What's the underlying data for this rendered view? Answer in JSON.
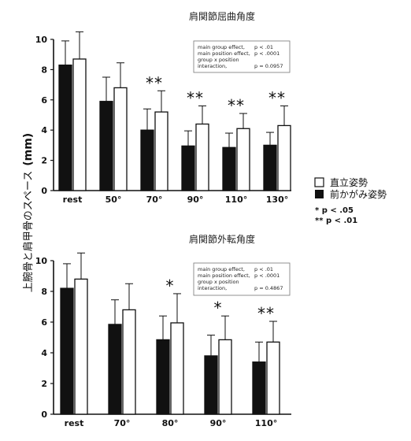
{
  "y_axis_label": "上腕骨と肩甲骨のスペース",
  "y_axis_unit": "(mm)",
  "legend": {
    "upright": "直立姿勢",
    "slouched": "前かがみ姿勢",
    "colors": {
      "upright": "#ffffff",
      "slouched": "#111111"
    }
  },
  "significance_legend": [
    "* p < .05",
    "** p < .01"
  ],
  "chart_data": [
    {
      "type": "bar",
      "title": "肩関節屈曲角度",
      "categories": [
        "rest",
        "50°",
        "70°",
        "90°",
        "110°",
        "130°"
      ],
      "ylim": [
        0,
        10
      ],
      "yticks": [
        "0",
        "2",
        "4",
        "6",
        "8",
        "10"
      ],
      "series": [
        {
          "name": "前かがみ姿勢",
          "values": [
            8.3,
            5.9,
            4.0,
            2.95,
            2.85,
            3.0
          ],
          "errors": [
            1.6,
            1.6,
            1.4,
            1.0,
            0.95,
            0.85
          ]
        },
        {
          "name": "直立姿勢",
          "values": [
            8.7,
            6.8,
            5.2,
            4.4,
            4.1,
            4.3
          ],
          "errors": [
            1.8,
            1.65,
            1.4,
            1.2,
            1.0,
            1.3
          ]
        }
      ],
      "significance": [
        "",
        "",
        "**",
        "**",
        "**",
        "**"
      ],
      "stats": [
        {
          "label": "main group effect,",
          "value": "p < .01"
        },
        {
          "label": "main position effect,",
          "value": "p < .0001"
        },
        {
          "label": "group x position",
          "value": ""
        },
        {
          "label": "interaction,",
          "value": "p = 0.0957"
        }
      ]
    },
    {
      "type": "bar",
      "title": "肩関節外転角度",
      "categories": [
        "rest",
        "70°",
        "80°",
        "90°",
        "110°"
      ],
      "ylim": [
        0,
        10
      ],
      "yticks": [
        "0",
        "2",
        "4",
        "6",
        "8",
        "10"
      ],
      "series": [
        {
          "name": "前かがみ姿勢",
          "values": [
            8.2,
            5.85,
            4.85,
            3.8,
            3.4
          ],
          "errors": [
            1.6,
            1.6,
            1.55,
            1.35,
            1.3
          ]
        },
        {
          "name": "直立姿勢",
          "values": [
            8.8,
            6.8,
            5.95,
            4.85,
            4.7
          ],
          "errors": [
            1.7,
            1.7,
            1.9,
            1.55,
            1.35
          ]
        }
      ],
      "significance": [
        "",
        "",
        "*",
        "*",
        "**"
      ],
      "stats": [
        {
          "label": "main group effect,",
          "value": "p < .01"
        },
        {
          "label": "main position effect,",
          "value": "p < .0001"
        },
        {
          "label": "group x position",
          "value": ""
        },
        {
          "label": "interaction,",
          "value": "p = 0.4867"
        }
      ]
    }
  ]
}
